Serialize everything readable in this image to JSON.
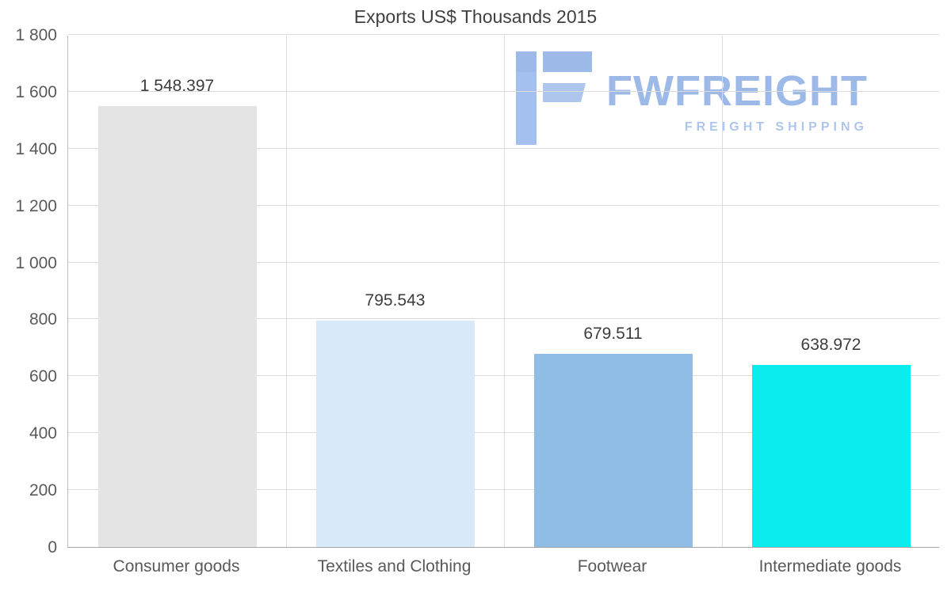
{
  "chart_data": {
    "type": "bar",
    "title": "Exports US$ Thousands 2015",
    "categories": [
      "Consumer goods",
      "Textiles and Clothing",
      "Footwear",
      "Intermediate goods"
    ],
    "values": [
      1548.397,
      795.543,
      679.511,
      638.972
    ],
    "value_labels": [
      "1 548.397",
      "795.543",
      "679.511",
      "638.972"
    ],
    "bar_colors": [
      "#e4e4e4",
      "#d9e9fa",
      "#90bde4",
      "#0beced"
    ],
    "xlabel": "",
    "ylabel": "",
    "ylim": [
      0,
      1800
    ],
    "yticks": [
      0,
      200,
      400,
      600,
      800,
      1000,
      1200,
      1400,
      1600,
      1800
    ],
    "ytick_labels": [
      "0",
      "200",
      "400",
      "600",
      "800",
      "1 000",
      "1 200",
      "1 400",
      "1 600",
      "1 800"
    ],
    "grid": "light gray horizontal lines at each tick, vertical lines between categories",
    "legend": "none"
  },
  "watermark": {
    "name": "FWFREIGHT",
    "subtitle": "FREIGHT SHIPPING",
    "color": "#9cb9e8"
  }
}
